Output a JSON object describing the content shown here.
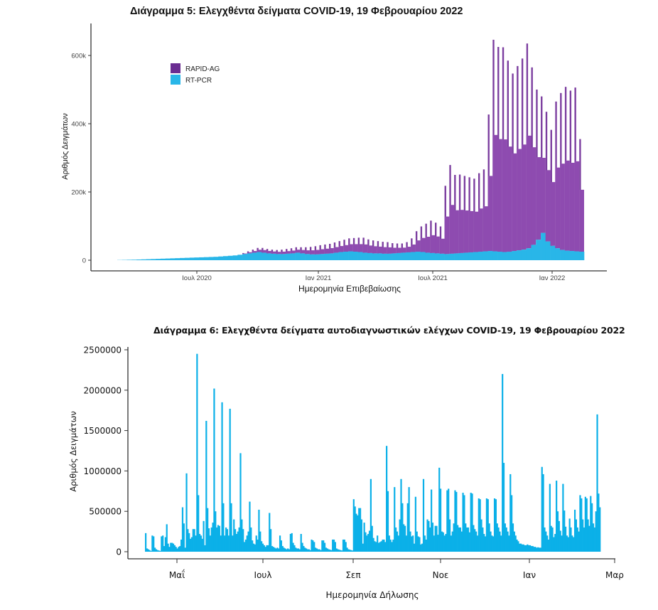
{
  "chart_data": [
    {
      "type": "bar",
      "stacked": true,
      "title": "Διάγραμμα 5: Ελεγχθέντα δείγματα COVID-19, 19 Φεβρουαρίου 2022",
      "xlabel": "Ημερομηνία Επιβεβαίωσης",
      "ylabel": "Αριθμός Δειγμάτων",
      "ylim": [
        0,
        690000
      ],
      "yticks": [
        0,
        200000,
        400000,
        600000
      ],
      "ytick_labels": [
        "0",
        "200k",
        "400k",
        "600k"
      ],
      "xticks": [
        "Ιουλ 2020",
        "Ιαν 2021",
        "Ιουλ 2021",
        "Ιαν 2022"
      ],
      "x_range": [
        "2020-03",
        "2022-02-19"
      ],
      "legend": {
        "placement": "top-left",
        "entries": [
          {
            "name": "RAPID-AG",
            "color": "#6a2c91"
          },
          {
            "name": "RT-PCR",
            "color": "#29b6e8"
          }
        ]
      },
      "grid": false,
      "x_unit": "week",
      "x_start": "2020-03-02",
      "series": [
        {
          "name": "RT-PCR",
          "color": "#29b6e8",
          "values": [
            500,
            800,
            1200,
            1500,
            2000,
            2500,
            3000,
            3500,
            4000,
            4500,
            5000,
            5500,
            6000,
            6500,
            7000,
            7500,
            8000,
            8500,
            9000,
            9500,
            10000,
            11000,
            12000,
            13000,
            14000,
            16000,
            18000,
            20000,
            22000,
            24000,
            22000,
            20000,
            19000,
            18000,
            18000,
            19000,
            20000,
            22000,
            20000,
            18000,
            17000,
            17000,
            18000,
            19000,
            20000,
            22000,
            24000,
            25000,
            26000,
            25000,
            24000,
            22000,
            21000,
            20000,
            20000,
            19000,
            19000,
            20000,
            21000,
            22000,
            23000,
            24000,
            25000,
            24000,
            22000,
            21000,
            20000,
            19000,
            18000,
            19000,
            20000,
            21000,
            22000,
            23000,
            24000,
            25000,
            26000,
            27000,
            26000,
            25000,
            24000,
            25000,
            27000,
            29000,
            31000,
            35000,
            45000,
            60000,
            80000,
            55000,
            42000,
            35000,
            30000,
            28000,
            27000,
            26000,
            25000
          ]
        },
        {
          "name": "RAPID-AG",
          "color": "#6a2c91",
          "values": [
            0,
            0,
            0,
            0,
            0,
            0,
            0,
            0,
            0,
            0,
            0,
            0,
            0,
            0,
            0,
            0,
            0,
            0,
            0,
            0,
            0,
            0,
            0,
            0,
            0,
            0,
            3000,
            6000,
            9000,
            12000,
            14000,
            13000,
            12000,
            12000,
            13000,
            14000,
            15000,
            16000,
            18000,
            20000,
            22000,
            24000,
            26000,
            27000,
            28000,
            30000,
            32000,
            35000,
            38000,
            40000,
            42000,
            44000,
            40000,
            38000,
            36000,
            35000,
            34000,
            30000,
            28000,
            27000,
            30000,
            40000,
            60000,
            75000,
            85000,
            95000,
            90000,
            80000,
            200000,
            260000,
            230000,
            230000,
            225000,
            220000,
            215000,
            230000,
            240000,
            400000,
            620000,
            600000,
            600000,
            560000,
            520000,
            540000,
            560000,
            600000,
            520000,
            440000,
            400000,
            380000,
            340000,
            430000,
            460000,
            480000,
            470000,
            480000,
            330000
          ]
        }
      ]
    },
    {
      "type": "bar",
      "title": "Διάγραμμα 6: Ελεγχθέντα δείγματα αυτοδιαγνωστικών ελέγχων COVID-19, 19 Φεβρουαρίου 2022",
      "xlabel": "Ημερομηνία Δήλωσης",
      "ylabel": "Αριθμός Δειγμάτων",
      "ylim": [
        -80000,
        2550000
      ],
      "yticks": [
        0,
        500000,
        1000000,
        1500000,
        2000000,
        2500000
      ],
      "ytick_labels": [
        "0",
        "500000",
        "1000000",
        "1500000",
        "2000000",
        "2500000"
      ],
      "xticks": [
        "Μαΐ",
        "Ιουλ",
        "Σεπ",
        "Νοε",
        "Ιαν",
        "Μαρ"
      ],
      "x_start": "2021-04-05",
      "x_unit": "day",
      "grid": false,
      "color": "#0bb0e8",
      "values": [
        230000,
        40000,
        30000,
        20000,
        10000,
        200000,
        190000,
        50000,
        30000,
        20000,
        15000,
        10000,
        190000,
        200000,
        70000,
        180000,
        340000,
        100000,
        60000,
        110000,
        110000,
        100000,
        80000,
        60000,
        40000,
        60000,
        70000,
        150000,
        550000,
        350000,
        50000,
        970000,
        280000,
        230000,
        160000,
        180000,
        280000,
        280000,
        200000,
        2450000,
        700000,
        220000,
        200000,
        160000,
        380000,
        80000,
        1620000,
        540000,
        290000,
        200000,
        300000,
        360000,
        2020000,
        500000,
        300000,
        330000,
        320000,
        200000,
        1850000,
        600000,
        200000,
        300000,
        280000,
        200000,
        1770000,
        600000,
        200000,
        400000,
        280000,
        220000,
        250000,
        300000,
        1220000,
        400000,
        280000,
        120000,
        150000,
        200000,
        250000,
        620000,
        300000,
        140000,
        100000,
        90000,
        200000,
        150000,
        520000,
        250000,
        130000,
        100000,
        80000,
        60000,
        80000,
        80000,
        480000,
        280000,
        70000,
        60000,
        50000,
        40000,
        50000,
        40000,
        200000,
        140000,
        70000,
        50000,
        40000,
        30000,
        40000,
        30000,
        220000,
        230000,
        110000,
        80000,
        50000,
        40000,
        40000,
        30000,
        220000,
        110000,
        70000,
        50000,
        40000,
        30000,
        30000,
        20000,
        150000,
        140000,
        120000,
        50000,
        40000,
        30000,
        30000,
        20000,
        140000,
        140000,
        110000,
        50000,
        40000,
        30000,
        25000,
        20000,
        150000,
        150000,
        120000,
        40000,
        30000,
        25000,
        20000,
        15000,
        150000,
        150000,
        120000,
        50000,
        30000,
        25000,
        20000,
        15000,
        650000,
        560000,
        470000,
        450000,
        540000,
        540000,
        400000,
        100000,
        360000,
        240000,
        200000,
        220000,
        260000,
        900000,
        320000,
        170000,
        130000,
        120000,
        200000,
        110000,
        120000,
        130000,
        150000,
        150000,
        120000,
        1310000,
        750000,
        200000,
        150000,
        120000,
        150000,
        800000,
        300000,
        250000,
        200000,
        400000,
        900000,
        600000,
        340000,
        320000,
        200000,
        600000,
        800000,
        250000,
        190000,
        200000,
        100000,
        680000,
        250000,
        190000,
        180000,
        90000,
        100000,
        900000,
        200000,
        150000,
        400000,
        380000,
        300000,
        770000,
        360000,
        200000,
        320000,
        320000,
        210000,
        1040000,
        780000,
        250000,
        240000,
        200000,
        220000,
        760000,
        780000,
        400000,
        200000,
        250000,
        350000,
        760000,
        740000,
        330000,
        300000,
        300000,
        250000,
        730000,
        700000,
        350000,
        300000,
        300000,
        240000,
        730000,
        720000,
        330000,
        280000,
        250000,
        200000,
        660000,
        650000,
        400000,
        300000,
        220000,
        190000,
        660000,
        650000,
        350000,
        250000,
        200000,
        190000,
        660000,
        650000,
        350000,
        300000,
        250000,
        200000,
        2200000,
        1100000,
        350000,
        300000,
        250000,
        200000,
        960000,
        700000,
        350000,
        250000,
        200000,
        150000,
        130000,
        100000,
        100000,
        90000,
        90000,
        80000,
        80000,
        90000,
        80000,
        80000,
        70000,
        70000,
        60000,
        60000,
        50000,
        55000,
        50000,
        50000,
        1050000,
        960000,
        300000,
        250000,
        200000,
        150000,
        840000,
        320000,
        300000,
        180000,
        220000,
        880000,
        500000,
        380000,
        260000,
        200000,
        840000,
        510000,
        310000,
        200000,
        180000,
        410000,
        300000,
        200000,
        180000,
        520000,
        400000,
        300000,
        250000,
        700000,
        660000,
        400000,
        300000,
        680000,
        660000,
        400000,
        320000,
        690000,
        600000,
        350000,
        300000,
        500000,
        1700000,
        720000,
        550000
      ]
    }
  ]
}
